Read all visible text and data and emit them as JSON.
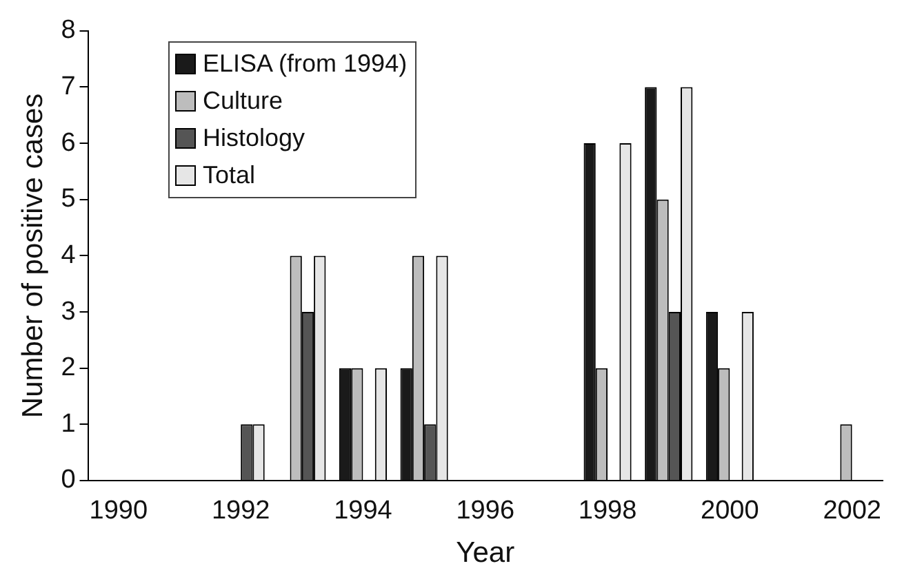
{
  "chart_data": {
    "type": "bar",
    "xlabel": "Year",
    "ylabel": "Number of positive cases",
    "categories": [
      "1990",
      null,
      "1992",
      null,
      "1994",
      null,
      "1996",
      null,
      "1998",
      null,
      "2000",
      null,
      "2002"
    ],
    "series": [
      {
        "name": "ELISA (from 1994)",
        "color": "#1a1a1a",
        "values": [
          null,
          null,
          null,
          null,
          2,
          2,
          null,
          null,
          6,
          7,
          3,
          null,
          null
        ]
      },
      {
        "name": "Culture",
        "color": "#bdbdbd",
        "values": [
          null,
          null,
          null,
          4,
          2,
          4,
          null,
          null,
          2,
          5,
          2,
          null,
          1
        ]
      },
      {
        "name": "Histology",
        "color": "#555555",
        "values": [
          null,
          null,
          1,
          3,
          null,
          1,
          null,
          null,
          null,
          3,
          null,
          null,
          null
        ]
      },
      {
        "name": "Total",
        "color": "#e6e6e6",
        "values": [
          null,
          null,
          1,
          4,
          2,
          4,
          null,
          null,
          6,
          7,
          3,
          null,
          null
        ]
      }
    ],
    "ylim": [
      0,
      8
    ],
    "yticks": [
      0,
      1,
      2,
      3,
      4,
      5,
      6,
      7,
      8
    ],
    "grid": false,
    "legend": "top left"
  }
}
